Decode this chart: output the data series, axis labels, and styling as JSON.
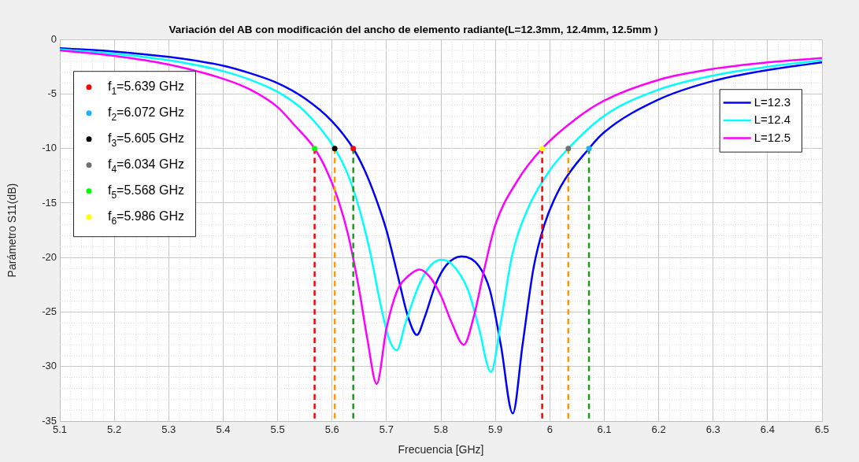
{
  "chart_data": {
    "type": "line",
    "title": "Variación del AB con modificación del ancho de elemento radiante(L=12.3mm, 12.4mm, 12.5mm )",
    "xlabel": "Frecuencia [GHz]",
    "ylabel": "Parámetro S11(dB)",
    "xlim": [
      5.1,
      6.5
    ],
    "xticks": [
      5.1,
      5.2,
      5.3,
      5.4,
      5.5,
      5.6,
      5.7,
      5.8,
      5.9,
      6,
      6.1,
      6.2,
      6.3,
      6.4,
      6.5
    ],
    "ylim": [
      -35,
      0
    ],
    "yticks": [
      -35,
      -30,
      -25,
      -20,
      -15,
      -10,
      -5,
      0
    ],
    "grid": true,
    "legend": "top right",
    "marker": "none",
    "line_style": "solid",
    "series": [
      {
        "name": "L=12.3",
        "color": "#0000ff",
        "x": [
          5.1,
          5.2,
          5.3,
          5.4,
          5.45,
          5.5,
          5.55,
          5.6,
          5.639,
          5.66,
          5.68,
          5.7,
          5.72,
          5.74,
          5.756,
          5.77,
          5.79,
          5.81,
          5.838,
          5.87,
          5.89,
          5.91,
          5.932,
          5.95,
          5.97,
          5.99,
          6.02,
          6.072,
          6.1,
          6.2,
          6.3,
          6.4,
          6.5
        ],
        "values": [
          -0.8,
          -1.1,
          -1.6,
          -2.4,
          -3.1,
          -4.0,
          -5.4,
          -7.5,
          -10,
          -12,
          -14.5,
          -17.5,
          -21.5,
          -25.5,
          -27.1,
          -25.5,
          -22.5,
          -20.7,
          -19.9,
          -20.8,
          -23,
          -28,
          -34.3,
          -28,
          -21,
          -17,
          -13.5,
          -10,
          -8.5,
          -5.5,
          -3.8,
          -2.8,
          -2.1
        ]
      },
      {
        "name": "L=12.4",
        "color": "#00ffff",
        "x": [
          5.1,
          5.2,
          5.3,
          5.4,
          5.45,
          5.5,
          5.55,
          5.605,
          5.63,
          5.65,
          5.67,
          5.69,
          5.705,
          5.719,
          5.735,
          5.76,
          5.78,
          5.8,
          5.82,
          5.85,
          5.87,
          5.892,
          5.91,
          5.93,
          5.96,
          6.0,
          6.034,
          6.1,
          6.2,
          6.3,
          6.4,
          6.5
        ],
        "values": [
          -0.9,
          -1.3,
          -1.9,
          -2.9,
          -3.7,
          -4.8,
          -6.6,
          -10,
          -12.5,
          -15.5,
          -19.5,
          -24.5,
          -27.5,
          -28.5,
          -26,
          -22.5,
          -20.8,
          -20.2,
          -20.6,
          -23,
          -26.5,
          -30.5,
          -26,
          -20,
          -15.5,
          -12,
          -10,
          -7,
          -4.6,
          -3.3,
          -2.5,
          -1.9
        ]
      },
      {
        "name": "L=12.5",
        "color": "#ff00ff",
        "x": [
          5.1,
          5.2,
          5.3,
          5.4,
          5.45,
          5.5,
          5.53,
          5.568,
          5.59,
          5.61,
          5.63,
          5.65,
          5.665,
          5.682,
          5.7,
          5.72,
          5.74,
          5.761,
          5.78,
          5.8,
          5.82,
          5.842,
          5.86,
          5.88,
          5.9,
          5.94,
          5.986,
          6.05,
          6.1,
          6.2,
          6.3,
          6.4,
          6.5
        ],
        "values": [
          -1.0,
          -1.5,
          -2.3,
          -3.6,
          -4.6,
          -6.2,
          -7.8,
          -10,
          -12,
          -14.5,
          -18,
          -23,
          -27.5,
          -31.6,
          -26.5,
          -23,
          -21.7,
          -21.1,
          -21.8,
          -23.5,
          -26,
          -28,
          -25.5,
          -21,
          -17,
          -13,
          -10,
          -7.2,
          -5.6,
          -3.7,
          -2.7,
          -2.1,
          -1.7
        ]
      },
      {
        "type": "line",
        "color": "#ff0000",
        "line_style": "dashed",
        "marker": "none",
        "x": [
          5.568,
          5.568
        ],
        "values": [
          -10,
          -35
        ]
      },
      {
        "type": "line",
        "color": "#ff0000",
        "line_style": "dashed",
        "marker": "none",
        "x": [
          5.986,
          5.986
        ],
        "values": [
          -10,
          -35
        ]
      },
      {
        "type": "line",
        "color": "#ff9900",
        "line_style": "dashed",
        "marker": "none",
        "x": [
          5.605,
          5.605
        ],
        "values": [
          -10,
          -35
        ]
      },
      {
        "type": "line",
        "color": "#ff9900",
        "line_style": "dashed",
        "marker": "none",
        "x": [
          6.034,
          6.034
        ],
        "values": [
          -10,
          -35
        ]
      },
      {
        "type": "line",
        "color": "#1a9a1a",
        "line_style": "dashed",
        "marker": "none",
        "x": [
          5.639,
          5.639
        ],
        "values": [
          -10,
          -35
        ]
      },
      {
        "type": "line",
        "color": "#1a9a1a",
        "line_style": "dashed",
        "marker": "none",
        "x": [
          6.072,
          6.072
        ],
        "values": [
          -10,
          -35
        ]
      },
      {
        "type": "scatter",
        "name": "f$_{1}$=5.639 GHz",
        "color": "#ff0000",
        "marker": "circle",
        "x": [
          5.639
        ],
        "values": [
          -10
        ]
      },
      {
        "type": "scatter",
        "name": "f$_{2}$=6.072 GHz",
        "color": "#1ab2ff",
        "marker": "circle",
        "x": [
          6.072
        ],
        "values": [
          -10
        ]
      },
      {
        "type": "scatter",
        "name": "f$_{3}$=5.605 GHz",
        "color": "#000000",
        "marker": "circle",
        "x": [
          5.605
        ],
        "values": [
          -10
        ]
      },
      {
        "type": "scatter",
        "name": "f$_{4}$=6.034 GHz",
        "color": "#707070",
        "marker": "circle",
        "x": [
          6.034
        ],
        "values": [
          -10
        ]
      },
      {
        "type": "scatter",
        "name": "f$_{5}$=5.568 GHz",
        "color": "#00ff00",
        "marker": "circle",
        "x": [
          5.568
        ],
        "values": [
          -10
        ]
      },
      {
        "type": "scatter",
        "name": "f$_{6}$=5.986 GHz",
        "color": "#ffff00",
        "marker": "circle",
        "x": [
          5.986
        ],
        "values": [
          -10
        ]
      }
    ]
  }
}
